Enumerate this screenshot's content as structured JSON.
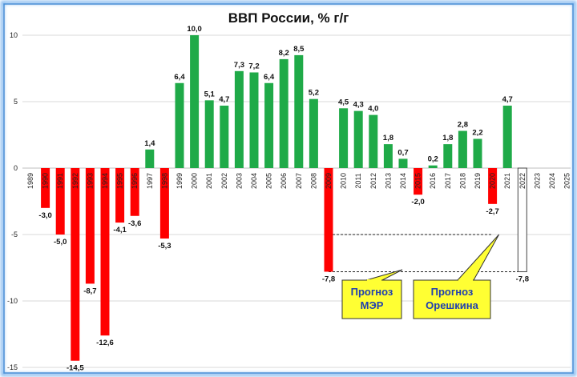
{
  "chart_data": {
    "type": "bar",
    "title": "ВВП России, % г/г",
    "xlabel": "",
    "ylabel": "",
    "ylim": [
      -15,
      12
    ],
    "yticks": [
      -15,
      -10,
      -5,
      0,
      5,
      10
    ],
    "grid": true,
    "legend": "none",
    "categories": [
      "1989",
      "1990",
      "1991",
      "1992",
      "1993",
      "1994",
      "1995",
      "1996",
      "1997",
      "1998",
      "1999",
      "2000",
      "2001",
      "2002",
      "2003",
      "2004",
      "2005",
      "2006",
      "2007",
      "2008",
      "2009",
      "2010",
      "2011",
      "2012",
      "2013",
      "2014",
      "2015",
      "2016",
      "2017",
      "2018",
      "2019",
      "2020",
      "2021",
      "2022",
      "2023",
      "2024",
      "2025"
    ],
    "category_labels": [
      "1989",
      "1990",
      "1991",
      "1992",
      "1993",
      "1994",
      "1995",
      "1996",
      "1997",
      "1998",
      "1999",
      "2000",
      "2001",
      "2002",
      "2003",
      "2004",
      "2005",
      "2006",
      "2007",
      "2008",
      "2009",
      "2010",
      "2011",
      "2012",
      "2013",
      "2014",
      "2015",
      "2016",
      "2017",
      "2018",
      "2019",
      "2020",
      "2021",
      "2022",
      "2023",
      "2024",
      "2025"
    ],
    "values": [
      null,
      -3.0,
      -5.0,
      -14.5,
      -8.7,
      -12.6,
      -4.1,
      -3.6,
      1.4,
      -5.3,
      6.4,
      10.0,
      5.1,
      4.7,
      7.3,
      7.2,
      6.4,
      8.2,
      8.5,
      5.2,
      -7.8,
      4.5,
      4.3,
      4.0,
      1.8,
      0.7,
      -2.0,
      0.2,
      1.8,
      2.8,
      2.2,
      -2.7,
      4.7,
      -7.8,
      null,
      null,
      null
    ],
    "value_labels": [
      "",
      "-3,0",
      "-5,0",
      "-14,5",
      "-8,7",
      "-12,6",
      "-4,1",
      "-3,6",
      "1,4",
      "-5,3",
      "6,4",
      "10,0",
      "5,1",
      "4,7",
      "7,3",
      "7,2",
      "6,4",
      "8,2",
      "8,5",
      "5,2",
      "-7,8",
      "4,5",
      "4,3",
      "4,0",
      "1,8",
      "0,7",
      "-2,0",
      "0,2",
      "1,8",
      "2,8",
      "2,2",
      "-2,7",
      "4,7",
      "-7,8",
      "",
      "",
      ""
    ],
    "forecast_index": 33,
    "colors": {
      "positive": "#1faa48",
      "negative": "#ff0000",
      "forecast_fill": "#ffffff",
      "forecast_stroke": "#444444",
      "grid": "#d9d9d9",
      "callout_fill": "#ffff33",
      "callout_text": "#1f3fb0",
      "frame": "#4a8fd6"
    },
    "reference_lines": [
      {
        "value": -5.0,
        "from_category": "2009",
        "to_category": "2020",
        "style": "dashed"
      },
      {
        "value": -7.8,
        "from_category": "2009",
        "to_category": "2022",
        "style": "dashed"
      }
    ],
    "annotations": [
      {
        "lines": [
          "Прогноз",
          "МЭР"
        ],
        "points_to": "2009"
      },
      {
        "lines": [
          "Прогноз",
          "Орешкина"
        ],
        "points_to": "2020"
      }
    ]
  }
}
